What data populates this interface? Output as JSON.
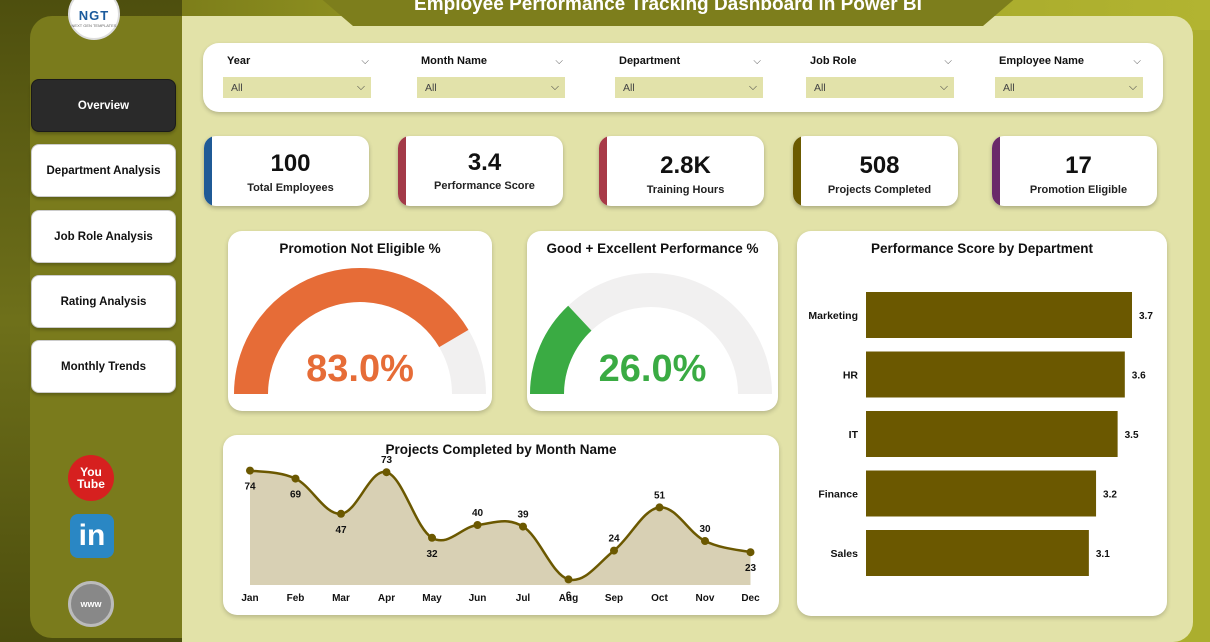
{
  "header": {
    "title": "Employee Performance Tracking Dashboard in Power BI"
  },
  "logo": {
    "text": "NGT",
    "subtext": "NEXT GEN TEMPLATES"
  },
  "nav": [
    {
      "label": "Overview",
      "active": true
    },
    {
      "label": "Department Analysis",
      "active": false
    },
    {
      "label": "Job Role Analysis",
      "active": false
    },
    {
      "label": "Rating Analysis",
      "active": false
    },
    {
      "label": "Monthly Trends",
      "active": false
    }
  ],
  "social": {
    "youtube_line1": "You",
    "youtube_line2": "Tube",
    "linkedin": "in",
    "web": "www"
  },
  "filters": [
    {
      "label": "Year",
      "value": "All"
    },
    {
      "label": "Month Name",
      "value": "All"
    },
    {
      "label": "Department",
      "value": "All"
    },
    {
      "label": "Job Role",
      "value": "All"
    },
    {
      "label": "Employee Name",
      "value": "All"
    }
  ],
  "kpis": [
    {
      "value": "100",
      "label": "Total Employees",
      "color": "#1f5a96"
    },
    {
      "value": "3.4",
      "label": "Performance Score",
      "color": "#a33a48"
    },
    {
      "value": "2.8K",
      "label": "Training Hours",
      "color": "#a83a48"
    },
    {
      "value": "508",
      "label": "Projects Completed",
      "color": "#6b5a00"
    },
    {
      "value": "17",
      "label": "Promotion Eligible",
      "color": "#6a2a6a"
    }
  ],
  "gauge_promotion": {
    "title": "Promotion Not Eligible %",
    "value_label": "83.0%",
    "fraction": 0.83,
    "fill_color": "#e66c37",
    "track_color": "#f1f0f0",
    "text_color": "#e66c37"
  },
  "gauge_performance": {
    "title": "Good + Excellent Performance %",
    "value_label": "26.0%",
    "fraction": 0.26,
    "fill_color": "#3aab43",
    "track_color": "#f1f0f0",
    "text_color": "#3aab43"
  },
  "chart_data": [
    {
      "type": "bar",
      "orientation": "horizontal",
      "title": "Performance Score by Department",
      "categories": [
        "Marketing",
        "HR",
        "IT",
        "Finance",
        "Sales"
      ],
      "values": [
        3.7,
        3.6,
        3.5,
        3.2,
        3.1
      ],
      "value_labels": [
        "3.7",
        "3.6",
        "3.5",
        "3.2",
        "3.1"
      ],
      "bar_color": "#6b5800",
      "xlim": [
        0,
        3.7
      ],
      "grid": false
    },
    {
      "type": "area",
      "title": "Projects Completed by Month Name",
      "categories": [
        "Jan",
        "Feb",
        "Mar",
        "Apr",
        "May",
        "Jun",
        "Jul",
        "Aug",
        "Sep",
        "Oct",
        "Nov",
        "Dec"
      ],
      "values": [
        74,
        69,
        47,
        73,
        32,
        40,
        39,
        6,
        24,
        51,
        30,
        23
      ],
      "value_labels": [
        "74",
        "69",
        "47",
        "73",
        "32",
        "40",
        "39",
        "6",
        "24",
        "51",
        "30",
        "23"
      ],
      "line_color": "#6b5800",
      "fill_color": "#d8d0b4",
      "ylim": [
        0,
        80
      ],
      "grid": false
    }
  ]
}
